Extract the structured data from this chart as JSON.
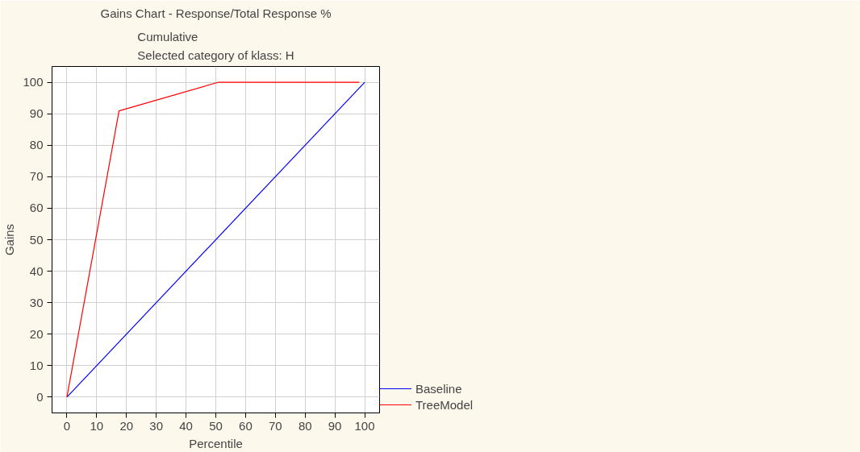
{
  "chart_data": {
    "type": "line",
    "title": "Gains Chart - Response/Total Response %",
    "subtitle": "Cumulative\nSelected category of klass: H",
    "xlabel": "Percentile",
    "ylabel": "Gains",
    "series": [
      {
        "name": "Baseline",
        "color": "#0000ff",
        "x": [
          0,
          100
        ],
        "values": [
          0,
          100
        ]
      },
      {
        "name": "TreeModel",
        "color": "#ff0000",
        "x": [
          0,
          17.5,
          50.9,
          98.2
        ],
        "values": [
          0,
          90.9,
          100,
          100
        ]
      }
    ],
    "xlim": [
      -5,
      105
    ],
    "ylim": [
      -5,
      105
    ],
    "xticks": [
      0,
      10,
      20,
      30,
      40,
      50,
      60,
      70,
      80,
      90,
      100
    ],
    "yticks": [
      0,
      10,
      20,
      30,
      40,
      50,
      60,
      70,
      80,
      90,
      100
    ],
    "grid": true,
    "legend": "bottom right",
    "marker": "none",
    "line_style": "solid"
  }
}
